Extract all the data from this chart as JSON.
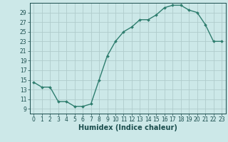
{
  "x": [
    0,
    1,
    2,
    3,
    4,
    5,
    6,
    7,
    8,
    9,
    10,
    11,
    12,
    13,
    14,
    15,
    16,
    17,
    18,
    19,
    20,
    21,
    22,
    23
  ],
  "y": [
    14.5,
    13.5,
    13.5,
    10.5,
    10.5,
    9.5,
    9.5,
    10.0,
    15.0,
    20.0,
    23.0,
    25.0,
    26.0,
    27.5,
    27.5,
    28.5,
    30.0,
    30.5,
    30.5,
    29.5,
    29.0,
    26.5,
    23.0,
    23.0
  ],
  "line_color": "#2e7d6e",
  "marker": "D",
  "marker_size": 2.0,
  "bg_color": "#cce8e8",
  "grid_color": "#b0cccc",
  "xlabel": "Humidex (Indice chaleur)",
  "xlim": [
    -0.5,
    23.5
  ],
  "ylim": [
    8.0,
    31.0
  ],
  "yticks": [
    9,
    11,
    13,
    15,
    17,
    19,
    21,
    23,
    25,
    27,
    29
  ],
  "xticks": [
    0,
    1,
    2,
    3,
    4,
    5,
    6,
    7,
    8,
    9,
    10,
    11,
    12,
    13,
    14,
    15,
    16,
    17,
    18,
    19,
    20,
    21,
    22,
    23
  ],
  "tick_label_fontsize": 5.5,
  "xlabel_fontsize": 7.0,
  "axis_color": "#1a4d4d",
  "linewidth": 1.0
}
